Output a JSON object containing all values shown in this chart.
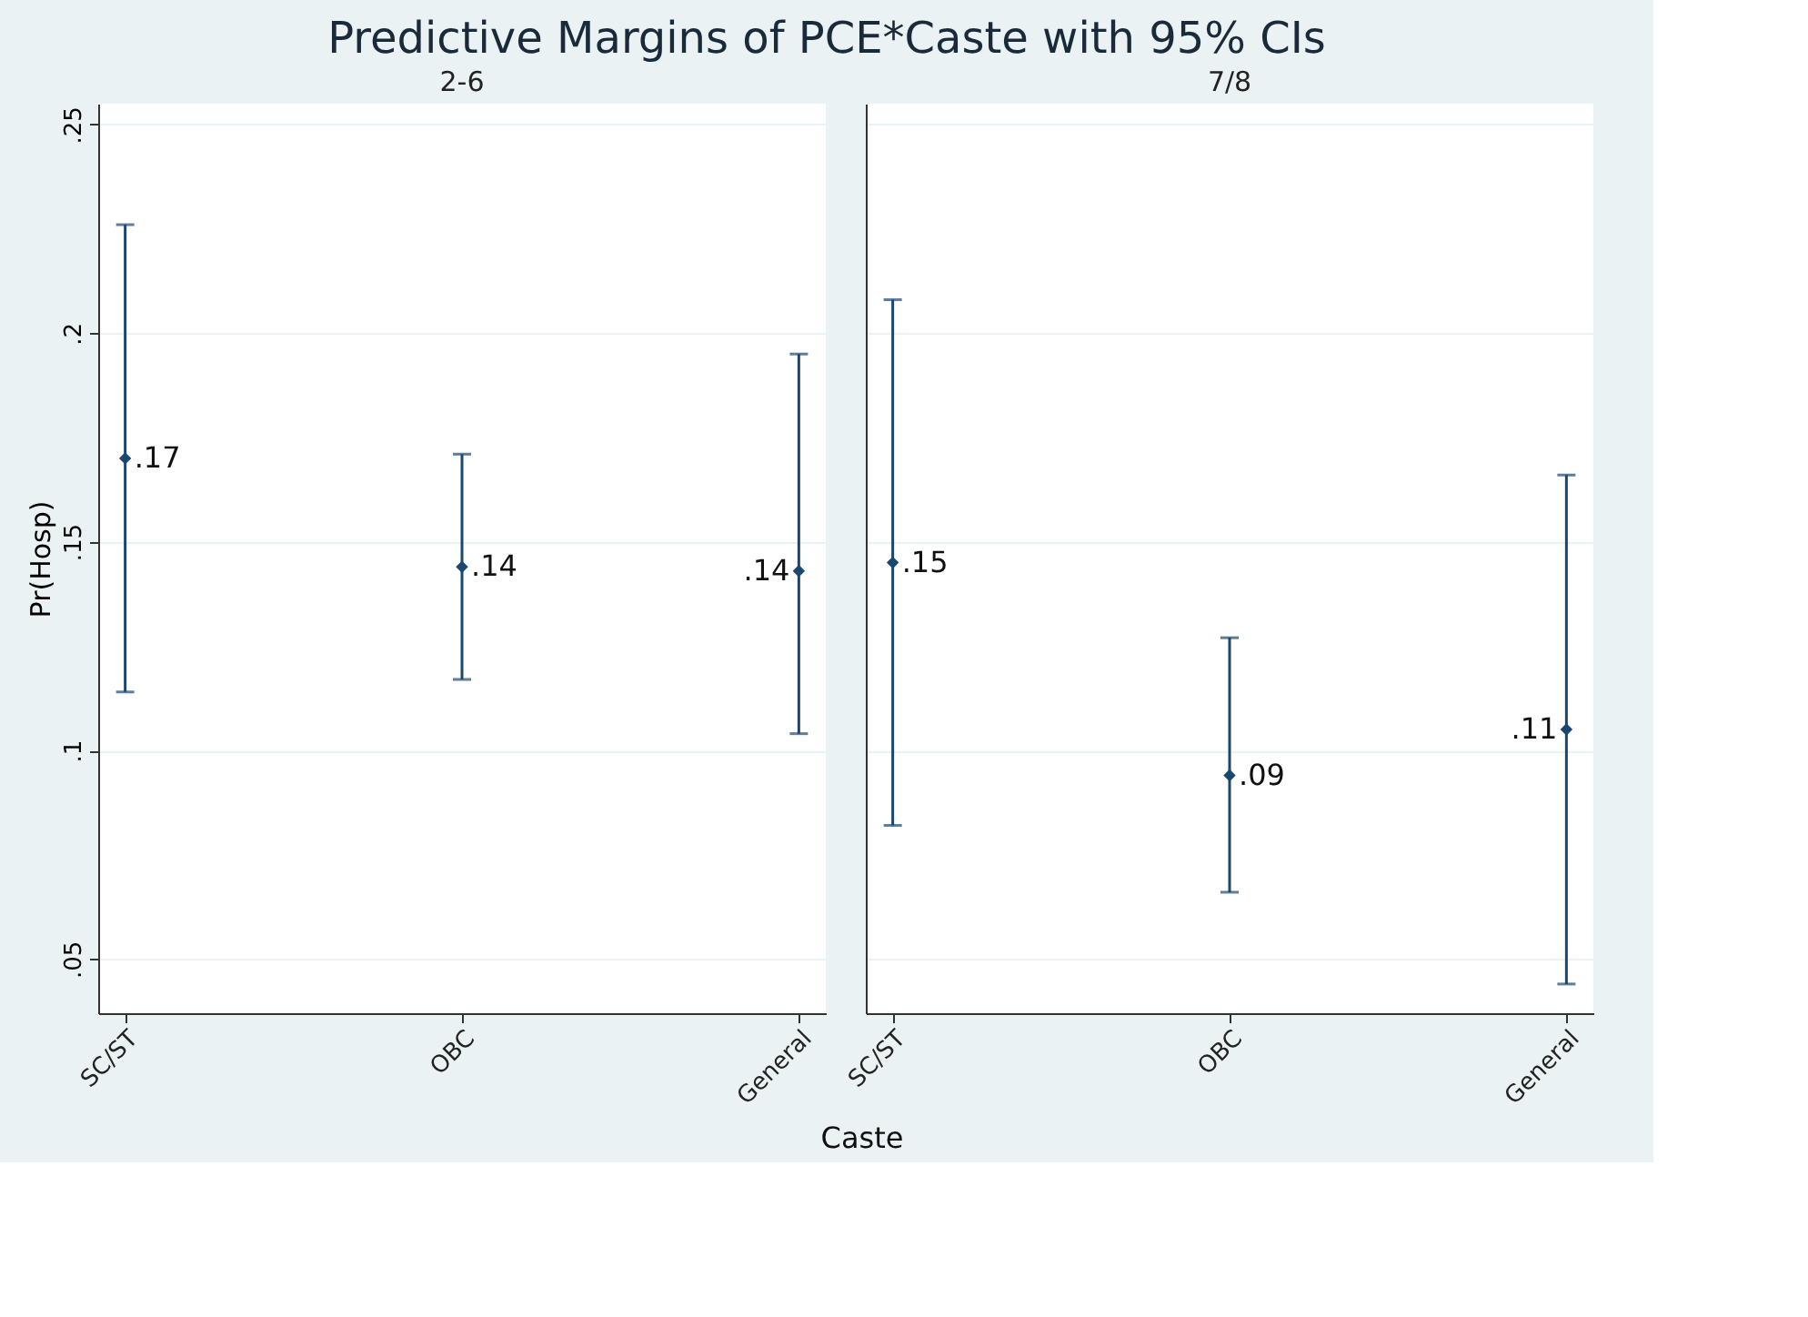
{
  "chart_data": [
    {
      "type": "scatter",
      "title": "Predictive Margins of PCE*Caste with 95% CIs",
      "subtitle": "2-6",
      "xlabel": "Caste",
      "ylabel": "Pr(Hosp)",
      "categories": [
        "SC/ST",
        "OBC",
        "General"
      ],
      "series": [
        {
          "color": "#1a476f",
          "values": [
            0.17,
            0.144,
            0.143
          ],
          "errors": [
            [
              0.114,
              0.226
            ],
            [
              0.117,
              0.171
            ],
            [
              0.104,
              0.195
            ]
          ],
          "value_labels": [
            ".17",
            ".14",
            ".14"
          ]
        }
      ],
      "ylim": [
        0.037,
        0.255
      ],
      "yticks": [
        {
          "value": 0.05,
          "label": ".05"
        },
        {
          "value": 0.1,
          "label": ".1"
        },
        {
          "value": 0.15,
          "label": ".15"
        },
        {
          "value": 0.2,
          "label": ".2"
        },
        {
          "value": 0.25,
          "label": ".25"
        }
      ],
      "grid": "y",
      "marker": "diamond"
    },
    {
      "type": "scatter",
      "subtitle": "7/8",
      "categories": [
        "SC/ST",
        "OBC",
        "General"
      ],
      "series": [
        {
          "color": "#1a476f",
          "values": [
            0.145,
            0.094,
            0.105
          ],
          "errors": [
            [
              0.082,
              0.208
            ],
            [
              0.066,
              0.127
            ],
            [
              0.044,
              0.166
            ]
          ],
          "value_labels": [
            ".15",
            ".09",
            ".11"
          ]
        }
      ],
      "ylim": [
        0.037,
        0.255
      ],
      "yticks": [
        0.05,
        0.1,
        0.15,
        0.2,
        0.25
      ],
      "grid": "y",
      "marker": "diamond",
      "tick_labels": "x"
    }
  ]
}
